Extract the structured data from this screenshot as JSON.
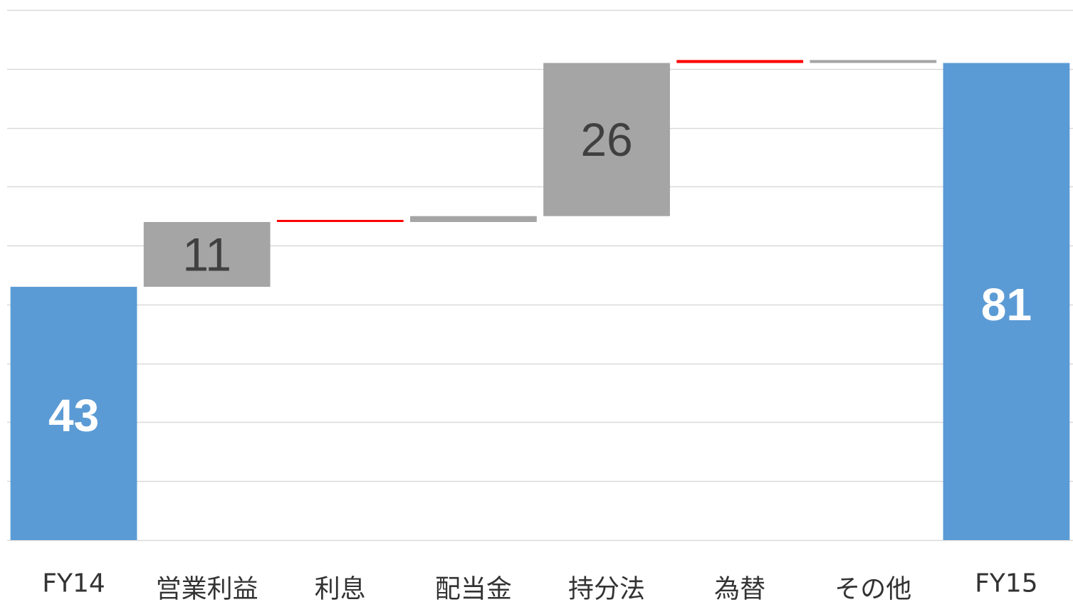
{
  "chart_data": {
    "type": "bar",
    "subtype": "waterfall",
    "categories": [
      "FY14",
      "営業利益",
      "利息",
      "配当金",
      "持分法",
      "為替",
      "その他",
      "FY15"
    ],
    "series": [
      {
        "values": [
          43,
          11,
          0,
          1,
          26,
          0.5,
          0.5,
          81
        ],
        "kind": [
          "total",
          "delta",
          "delta",
          "delta",
          "delta",
          "delta",
          "delta",
          "total"
        ],
        "base": [
          0,
          43,
          54,
          54,
          55,
          81,
          81,
          0
        ],
        "labels": [
          "43",
          "11",
          "",
          "",
          "26",
          "",
          "",
          "81"
        ],
        "colors": [
          "#5b9bd5",
          "#a5a5a5",
          "#ff0000",
          "#a5a5a5",
          "#a5a5a5",
          "#ff0000",
          "#a5a5a5",
          "#5b9bd5"
        ]
      }
    ],
    "ylim": [
      0,
      90
    ],
    "grid": true,
    "legend": "none",
    "xlabel": "",
    "ylabel": "",
    "colors": {
      "total": "#5b9bd5",
      "increase": "#a5a5a5",
      "decrease": "#ff0000",
      "gridline": "#d9d9d9",
      "total_label": "#ffffff",
      "delta_label": "#404040"
    }
  }
}
